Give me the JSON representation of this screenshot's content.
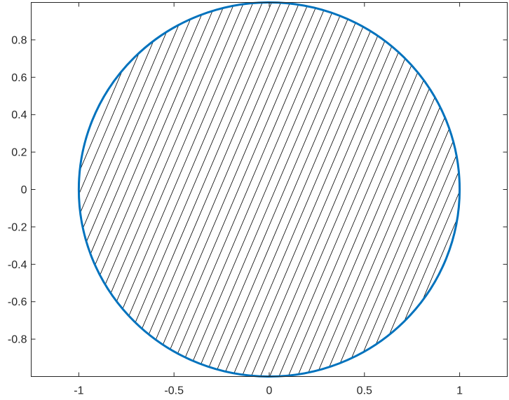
{
  "chart_data": {
    "type": "area",
    "title": "",
    "xlabel": "",
    "ylabel": "",
    "xlim": [
      -1.25,
      1.25
    ],
    "ylim": [
      -1,
      1
    ],
    "grid": false,
    "legend": "none",
    "x_ticks": [
      {
        "value": -1,
        "label": "-1"
      },
      {
        "value": -0.5,
        "label": "-0.5"
      },
      {
        "value": 0,
        "label": "0"
      },
      {
        "value": 0.5,
        "label": "0.5"
      },
      {
        "value": 1,
        "label": "1"
      }
    ],
    "y_ticks": [
      {
        "value": 0.8,
        "label": "0.8"
      },
      {
        "value": 0.6,
        "label": "0.6"
      },
      {
        "value": 0.4,
        "label": "0.4"
      },
      {
        "value": 0.2,
        "label": "0.2"
      },
      {
        "value": 0,
        "label": "0"
      },
      {
        "value": -0.2,
        "label": "-0.2"
      },
      {
        "value": -0.4,
        "label": "-0.4"
      },
      {
        "value": -0.6,
        "label": "-0.6"
      },
      {
        "value": -0.8,
        "label": "-0.8"
      }
    ],
    "series": [
      {
        "shape": "circle",
        "center": [
          0,
          0
        ],
        "radius": 1,
        "outline_color": "#0072BD",
        "fill": "hatch",
        "hatch_color": "#000000",
        "hatch_direction": "diagonal"
      }
    ],
    "axis_color": "#262626"
  }
}
